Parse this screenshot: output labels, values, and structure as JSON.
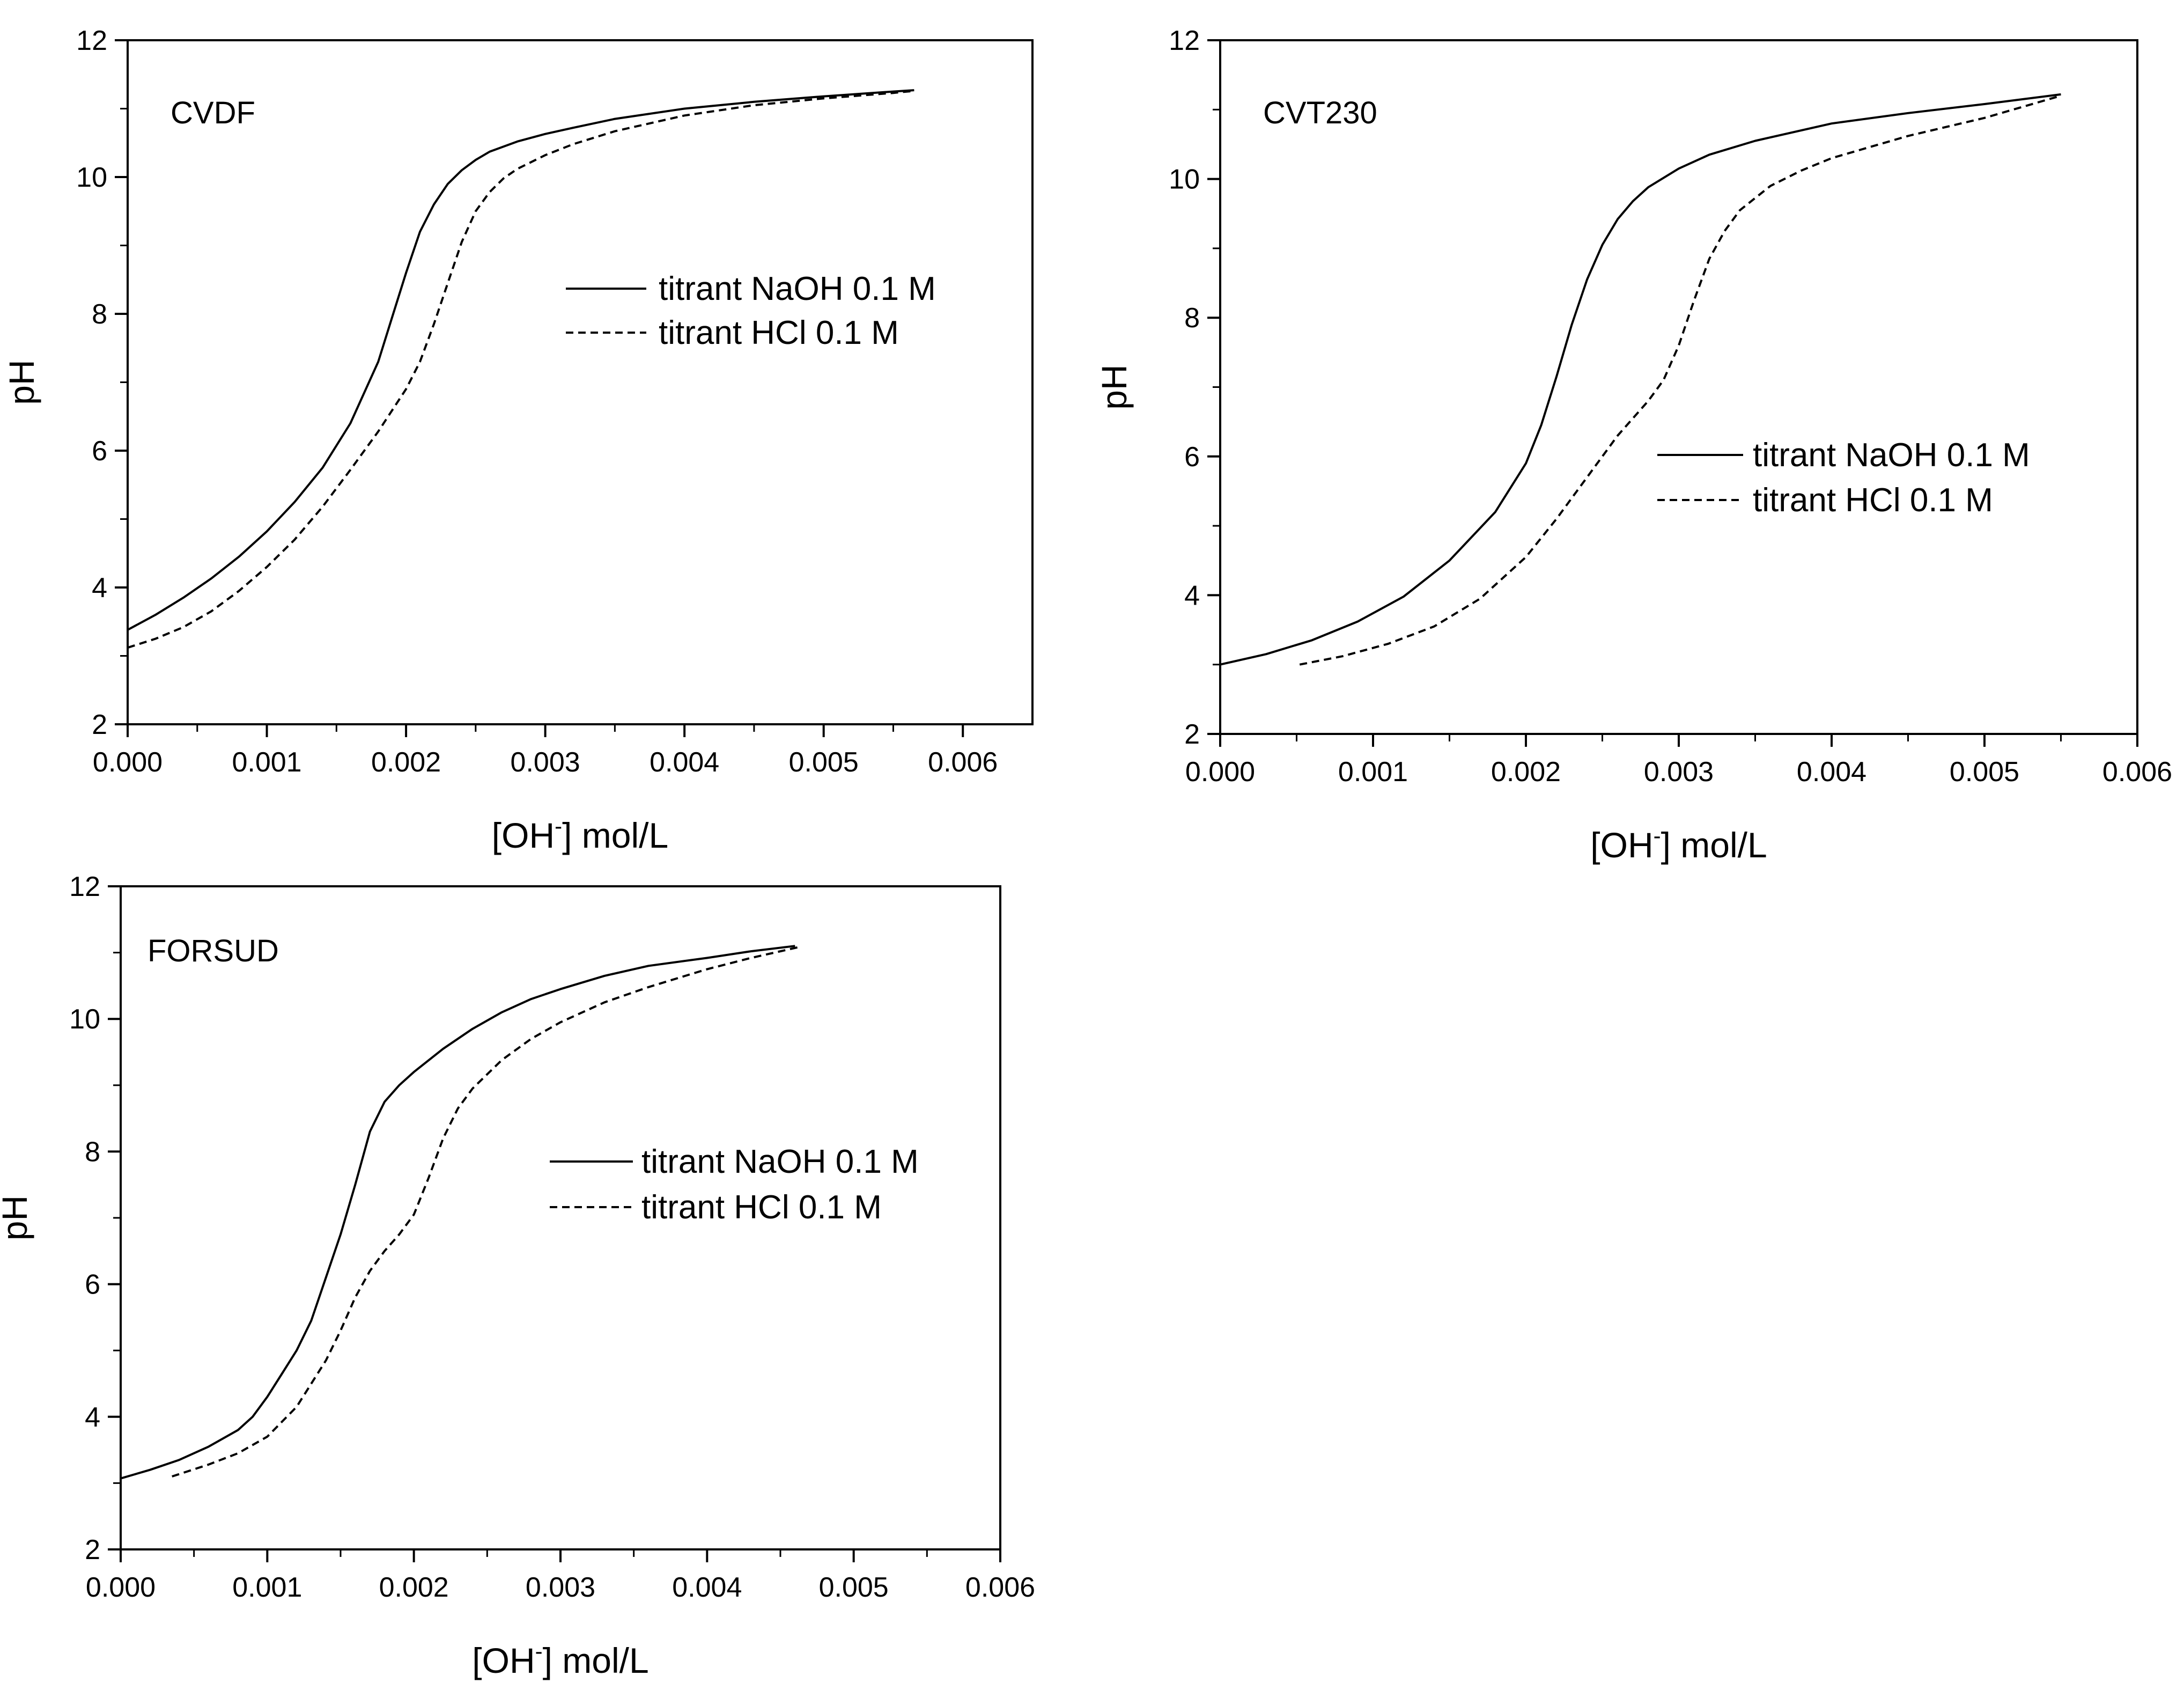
{
  "chart_data": [
    {
      "type": "line",
      "panel_label": "CVDF",
      "xlabel_base": "[OH",
      "xlabel_sup": "-",
      "xlabel_tail": "] mol/L",
      "ylabel": "pH",
      "xlim": [
        0,
        0.0065
      ],
      "ylim": [
        2,
        12
      ],
      "x_ticks": [
        0,
        0.001,
        0.002,
        0.003,
        0.004,
        0.005,
        0.006
      ],
      "x_tick_labels": [
        "0.000",
        "0.001",
        "0.002",
        "0.003",
        "0.004",
        "0.005",
        "0.006"
      ],
      "y_ticks": [
        2,
        4,
        6,
        8,
        10,
        12
      ],
      "y_tick_labels": [
        "2",
        "4",
        "6",
        "8",
        "10",
        "12"
      ],
      "legend_position": "center-right",
      "series": [
        {
          "name": "titrant NaOH 0.1 M",
          "style": "solid",
          "x": [
            0,
            0.0002,
            0.0004,
            0.0006,
            0.0008,
            0.001,
            0.0012,
            0.0014,
            0.0016,
            0.0018,
            0.0019,
            0.002,
            0.0021,
            0.0022,
            0.0023,
            0.0024,
            0.0025,
            0.0026,
            0.0028,
            0.003,
            0.0032,
            0.0035,
            0.004,
            0.0045,
            0.005,
            0.0055,
            0.00565
          ],
          "y": [
            3.38,
            3.6,
            3.85,
            4.13,
            4.45,
            4.82,
            5.25,
            5.75,
            6.4,
            7.3,
            7.95,
            8.6,
            9.2,
            9.6,
            9.9,
            10.1,
            10.25,
            10.37,
            10.52,
            10.63,
            10.72,
            10.85,
            11.0,
            11.1,
            11.18,
            11.25,
            11.27
          ]
        },
        {
          "name": "titrant HCl 0.1 M",
          "style": "dashed",
          "x": [
            0,
            0.0002,
            0.0004,
            0.0006,
            0.0008,
            0.001,
            0.0012,
            0.0014,
            0.0016,
            0.0018,
            0.002,
            0.0021,
            0.0022,
            0.0023,
            0.0024,
            0.0025,
            0.0026,
            0.0027,
            0.0028,
            0.003,
            0.0032,
            0.0035,
            0.004,
            0.0045,
            0.005,
            0.0055,
            0.00565
          ],
          "y": [
            3.12,
            3.25,
            3.42,
            3.65,
            3.95,
            4.3,
            4.7,
            5.18,
            5.72,
            6.28,
            6.9,
            7.3,
            7.85,
            8.45,
            9.05,
            9.5,
            9.78,
            9.98,
            10.12,
            10.32,
            10.48,
            10.67,
            10.9,
            11.05,
            11.15,
            11.23,
            11.26
          ]
        }
      ]
    },
    {
      "type": "line",
      "panel_label": "CVT230",
      "xlabel_base": "[OH",
      "xlabel_sup": "-",
      "xlabel_tail": "] mol/L",
      "ylabel": "pH",
      "xlim": [
        0,
        0.006
      ],
      "ylim": [
        2,
        12
      ],
      "x_ticks": [
        0,
        0.001,
        0.002,
        0.003,
        0.004,
        0.005,
        0.006
      ],
      "x_tick_labels": [
        "0.000",
        "0.001",
        "0.002",
        "0.003",
        "0.004",
        "0.005",
        "0.006"
      ],
      "y_ticks": [
        2,
        4,
        6,
        8,
        10,
        12
      ],
      "y_tick_labels": [
        "2",
        "4",
        "6",
        "8",
        "10",
        "12"
      ],
      "legend_position": "center-right",
      "series": [
        {
          "name": "titrant NaOH 0.1 M",
          "style": "solid",
          "x": [
            0,
            0.0003,
            0.0006,
            0.0009,
            0.0012,
            0.0015,
            0.0018,
            0.002,
            0.0021,
            0.0022,
            0.0023,
            0.0024,
            0.0025,
            0.0026,
            0.0027,
            0.0028,
            0.003,
            0.0032,
            0.0035,
            0.004,
            0.0045,
            0.005,
            0.0055
          ],
          "y": [
            3.0,
            3.15,
            3.35,
            3.62,
            3.98,
            4.5,
            5.2,
            5.9,
            6.45,
            7.15,
            7.9,
            8.55,
            9.05,
            9.42,
            9.68,
            9.88,
            10.15,
            10.35,
            10.55,
            10.8,
            10.95,
            11.08,
            11.22
          ]
        },
        {
          "name": "titrant HCl 0.1 M",
          "style": "dashed",
          "x": [
            0.00052,
            0.0008,
            0.0011,
            0.0014,
            0.0017,
            0.002,
            0.0022,
            0.0024,
            0.0026,
            0.0028,
            0.0029,
            0.003,
            0.0031,
            0.0032,
            0.0033,
            0.0034,
            0.0036,
            0.0038,
            0.004,
            0.0045,
            0.005,
            0.0055
          ],
          "y": [
            3.0,
            3.12,
            3.3,
            3.55,
            3.95,
            4.55,
            5.1,
            5.7,
            6.3,
            6.8,
            7.1,
            7.6,
            8.25,
            8.85,
            9.25,
            9.55,
            9.9,
            10.12,
            10.3,
            10.62,
            10.88,
            11.2
          ]
        }
      ]
    },
    {
      "type": "line",
      "panel_label": "FORSUD",
      "xlabel_base": "[OH",
      "xlabel_sup": "-",
      "xlabel_tail": "] mol/L",
      "ylabel": "pH",
      "xlim": [
        0,
        0.006
      ],
      "ylim": [
        2,
        12
      ],
      "x_ticks": [
        0,
        0.001,
        0.002,
        0.003,
        0.004,
        0.005,
        0.006
      ],
      "x_tick_labels": [
        "0.000",
        "0.001",
        "0.002",
        "0.003",
        "0.004",
        "0.005",
        "0.006"
      ],
      "y_ticks": [
        2,
        4,
        6,
        8,
        10,
        12
      ],
      "y_tick_labels": [
        "2",
        "4",
        "6",
        "8",
        "10",
        "12"
      ],
      "legend_position": "center-right",
      "series": [
        {
          "name": "titrant NaOH 0.1 M",
          "style": "solid",
          "x": [
            0,
            0.0002,
            0.0004,
            0.0006,
            0.0008,
            0.0009,
            0.001,
            0.0011,
            0.0012,
            0.0013,
            0.0014,
            0.0015,
            0.0016,
            0.0017,
            0.0018,
            0.0019,
            0.002,
            0.0022,
            0.0024,
            0.0026,
            0.0028,
            0.003,
            0.0033,
            0.0036,
            0.004,
            0.0043,
            0.0046
          ],
          "y": [
            3.07,
            3.2,
            3.35,
            3.55,
            3.8,
            4.0,
            4.3,
            4.65,
            5.0,
            5.45,
            6.1,
            6.75,
            7.5,
            8.3,
            8.75,
            9.0,
            9.2,
            9.55,
            9.85,
            10.1,
            10.3,
            10.45,
            10.65,
            10.8,
            10.92,
            11.02,
            11.1
          ]
        },
        {
          "name": "titrant HCl 0.1 M",
          "style": "dashed",
          "x": [
            0.00035,
            0.0006,
            0.0008,
            0.001,
            0.0012,
            0.0014,
            0.0015,
            0.0016,
            0.0017,
            0.0018,
            0.0019,
            0.002,
            0.0021,
            0.0022,
            0.0023,
            0.0024,
            0.0026,
            0.0028,
            0.003,
            0.0033,
            0.0036,
            0.004,
            0.0043,
            0.00462
          ],
          "y": [
            3.1,
            3.28,
            3.45,
            3.7,
            4.15,
            4.85,
            5.3,
            5.8,
            6.2,
            6.5,
            6.75,
            7.05,
            7.6,
            8.2,
            8.65,
            8.95,
            9.38,
            9.7,
            9.95,
            10.25,
            10.48,
            10.75,
            10.92,
            11.08
          ]
        }
      ]
    }
  ]
}
